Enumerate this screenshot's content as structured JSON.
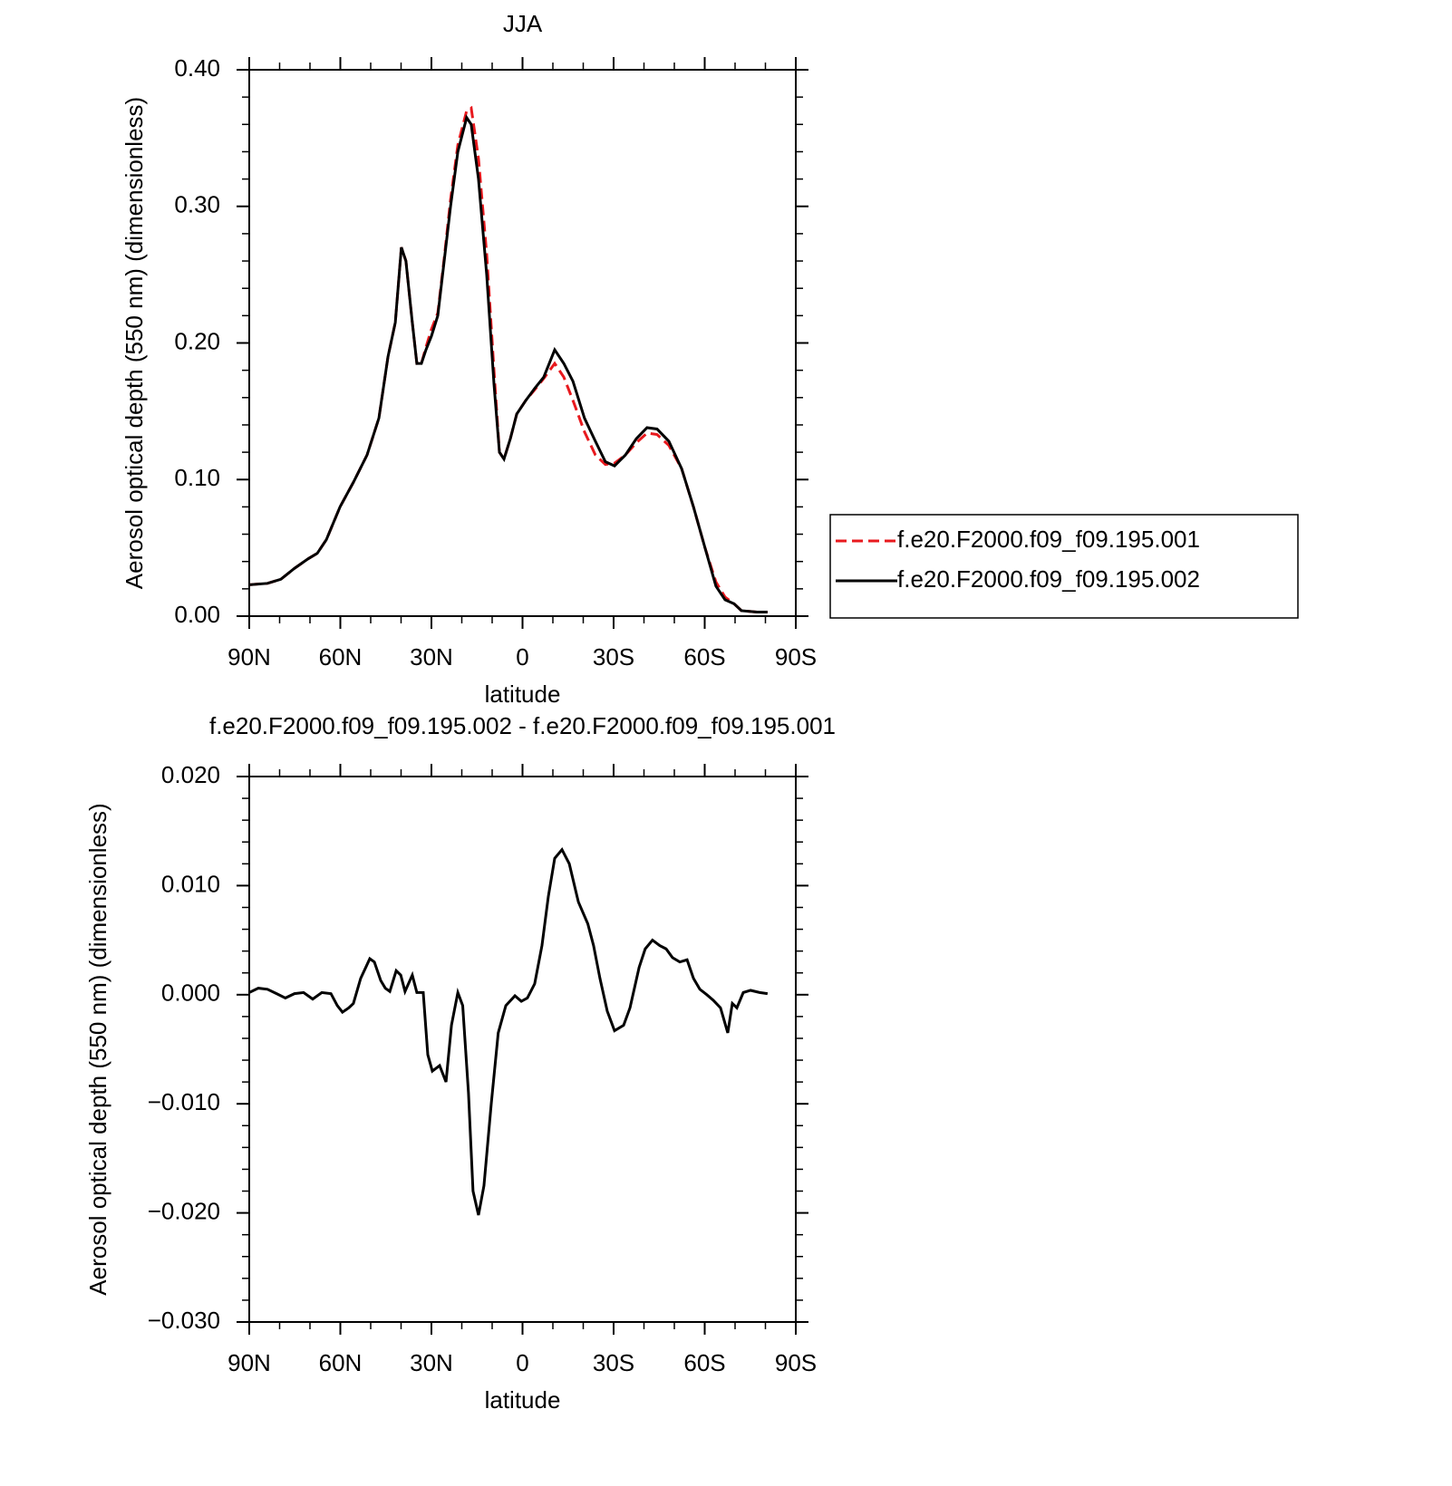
{
  "chart_data": [
    {
      "type": "line",
      "title": "JJA",
      "xlabel": "latitude",
      "ylabel": "Aerosol optical depth (550 nm) (dimensionless)",
      "xlim": [
        90,
        -90
      ],
      "xticks": [
        {
          "value": 90,
          "label": "90N"
        },
        {
          "value": 60,
          "label": "60N"
        },
        {
          "value": 30,
          "label": "30N"
        },
        0,
        {
          "value": -30,
          "label": "30S"
        },
        {
          "value": -60,
          "label": "60S"
        },
        {
          "value": -90,
          "label": "90S"
        }
      ],
      "ylim": [
        0,
        0.4
      ],
      "yticks": [
        {
          "value": 0,
          "label": "0.00"
        },
        {
          "value": 0.1,
          "label": "0.10"
        },
        {
          "value": 0.2,
          "label": "0.20"
        },
        {
          "value": 0.3,
          "label": "0.30"
        },
        {
          "value": 0.4,
          "label": "0.40"
        }
      ],
      "legend": "right",
      "x": [
        90,
        84.0,
        79.6,
        75.1,
        70.6,
        67.6,
        64.6,
        60.1,
        55.7,
        51.2,
        47.3,
        44.3,
        41.9,
        39.9,
        38.4,
        36.3,
        34.8,
        33.3,
        31.8,
        30.0,
        27.9,
        25.8,
        23.7,
        21.3,
        18.4,
        16.9,
        14.5,
        11.8,
        9.4,
        7.6,
        6.1,
        4.0,
        1.9,
        -1.1,
        -4.1,
        -7.0,
        -10.6,
        -13.6,
        -16.6,
        -20.4,
        -24.0,
        -27.3,
        -30.3,
        -33.9,
        -37.5,
        -41.0,
        -44.3,
        -48.2,
        -52.4,
        -56.3,
        -60.1,
        -63.7,
        -66.7,
        -69.7,
        -72.1,
        -77.2,
        -80.7
      ],
      "series": [
        {
          "name": "f.e20.F2000.f09_f09.195.001",
          "color": "#e8191e",
          "line_style": "dashed",
          "values": [
            0.023,
            0.024,
            0.027,
            0.035,
            0.042,
            0.046,
            0.056,
            0.08,
            0.098,
            0.118,
            0.145,
            0.19,
            0.215,
            0.27,
            0.26,
            0.215,
            0.185,
            0.185,
            0.197,
            0.21,
            0.222,
            0.262,
            0.305,
            0.345,
            0.37,
            0.372,
            0.335,
            0.265,
            0.18,
            0.12,
            0.115,
            0.13,
            0.148,
            0.158,
            0.166,
            0.174,
            0.185,
            0.175,
            0.158,
            0.135,
            0.118,
            0.111,
            0.112,
            0.118,
            0.127,
            0.134,
            0.133,
            0.125,
            0.108,
            0.08,
            0.05,
            0.025,
            0.014,
            0.009,
            0.004,
            0.003,
            0.003
          ]
        },
        {
          "name": "f.e20.F2000.f09_f09.195.002",
          "color": "#000000",
          "line_style": "solid",
          "values": [
            0.023,
            0.024,
            0.027,
            0.035,
            0.042,
            0.046,
            0.056,
            0.08,
            0.098,
            0.118,
            0.145,
            0.19,
            0.215,
            0.27,
            0.26,
            0.215,
            0.185,
            0.185,
            0.195,
            0.205,
            0.22,
            0.26,
            0.3,
            0.34,
            0.365,
            0.36,
            0.32,
            0.25,
            0.17,
            0.12,
            0.115,
            0.13,
            0.148,
            0.158,
            0.167,
            0.175,
            0.195,
            0.185,
            0.172,
            0.145,
            0.128,
            0.113,
            0.11,
            0.118,
            0.13,
            0.138,
            0.137,
            0.128,
            0.108,
            0.08,
            0.05,
            0.022,
            0.012,
            0.009,
            0.004,
            0.003,
            0.003
          ]
        }
      ]
    },
    {
      "type": "line",
      "title": "f.e20.F2000.f09_f09.195.002 - f.e20.F2000.f09_f09.195.001",
      "xlabel": "latitude",
      "ylabel": "Aerosol optical depth (550 nm) (dimensionless)",
      "xlim": [
        90,
        -90
      ],
      "xticks": [
        {
          "value": 90,
          "label": "90N"
        },
        {
          "value": 60,
          "label": "60N"
        },
        {
          "value": 30,
          "label": "30N"
        },
        0,
        {
          "value": -30,
          "label": "30S"
        },
        {
          "value": -60,
          "label": "60S"
        },
        {
          "value": -90,
          "label": "90S"
        }
      ],
      "ylim": [
        -0.03,
        0.02
      ],
      "yticks": [
        {
          "value": -0.03,
          "label": "−0.030"
        },
        {
          "value": -0.02,
          "label": "−0.020"
        },
        {
          "value": -0.01,
          "label": "−0.010"
        },
        {
          "value": 0,
          "label": "0.000"
        },
        {
          "value": 0.01,
          "label": "0.010"
        },
        {
          "value": 0.02,
          "label": "0.020"
        }
      ],
      "color": "#000000",
      "x": [
        90,
        87.0,
        84.0,
        81.0,
        78.1,
        75.1,
        72.1,
        69.1,
        66.1,
        63.1,
        61.0,
        59.3,
        57.2,
        55.7,
        53.3,
        50.3,
        48.8,
        46.7,
        45.2,
        43.7,
        41.6,
        40.1,
        38.7,
        36.3,
        34.8,
        32.7,
        31.2,
        29.7,
        27.3,
        25.2,
        23.4,
        21.3,
        19.7,
        17.8,
        16.3,
        14.5,
        12.7,
        10.3,
        8.0,
        5.5,
        2.5,
        0.4,
        -1.6,
        -4.0,
        -6.4,
        -8.5,
        -10.6,
        -13.0,
        -15.4,
        -18.4,
        -21.5,
        -23.4,
        -25.5,
        -27.9,
        -30.3,
        -33.3,
        -35.4,
        -38.4,
        -40.4,
        -42.8,
        -45.2,
        -47.3,
        -49.4,
        -51.8,
        -54.2,
        -56.3,
        -58.4,
        -60.7,
        -62.8,
        -65.2,
        -67.6,
        -69.1,
        -70.6,
        -72.7,
        -75.1,
        -78.1,
        -80.7
      ],
      "values": [
        0.0002,
        0.0006,
        0.0005,
        0.0001,
        -0.0003,
        0.0001,
        0.0002,
        -0.0004,
        0.0002,
        0.0001,
        -0.001,
        -0.0016,
        -0.0012,
        -0.0008,
        0.0015,
        0.0033,
        0.003,
        0.0013,
        0.0006,
        0.0003,
        0.0022,
        0.0018,
        0.0003,
        0.0018,
        0.0002,
        0.0002,
        -0.0055,
        -0.007,
        -0.0065,
        -0.008,
        -0.0028,
        0.0002,
        -0.001,
        -0.009,
        -0.018,
        -0.0202,
        -0.0175,
        -0.01,
        -0.0035,
        -0.001,
        -0.0001,
        -0.0006,
        -0.0003,
        0.001,
        0.0045,
        0.009,
        0.0125,
        0.0133,
        0.012,
        0.0085,
        0.0065,
        0.0045,
        0.0015,
        -0.0015,
        -0.0033,
        -0.0028,
        -0.0012,
        0.0025,
        0.0042,
        0.005,
        0.0045,
        0.0042,
        0.0034,
        0.003,
        0.0032,
        0.0015,
        0.0005,
        0.0,
        -0.0005,
        -0.0012,
        -0.0035,
        -0.0008,
        -0.0012,
        0.0002,
        0.0004,
        0.0002,
        0.0001
      ]
    }
  ]
}
